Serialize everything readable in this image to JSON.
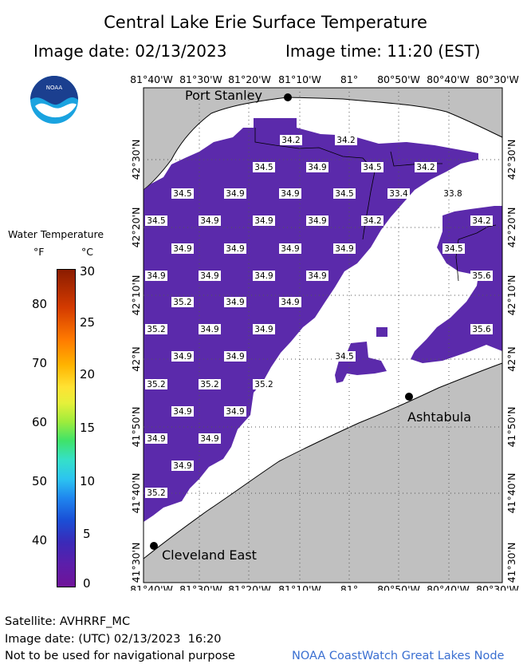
{
  "header": {
    "title": "Central Lake Erie Surface Temperature",
    "image_date": "Image date: 02/13/2023",
    "image_time": "Image time: 11:20 (EST)"
  },
  "logo_text": "NOAA",
  "map": {
    "lon_labels": [
      "81°40'W",
      "81°30'W",
      "81°20'W",
      "81°10'W",
      "81°",
      "80°50'W",
      "80°40'W",
      "80°30'W"
    ],
    "lat_labels": [
      "42°30'N",
      "42°20'N",
      "42°10'N",
      "42°N",
      "41°50'N",
      "41°40'N",
      "41°30'N"
    ],
    "places": [
      {
        "name": "Port Stanley"
      },
      {
        "name": "Ashtabula"
      },
      {
        "name": "Cleveland East"
      }
    ],
    "temperature_labels": [
      "34.2",
      "34.2",
      "34.5",
      "34.9",
      "34.5",
      "34.2",
      "34.5",
      "34.9",
      "34.9",
      "34.5",
      "33.4",
      "33.8",
      "34.5",
      "34.9",
      "34.9",
      "34.9",
      "34.2",
      "34.2",
      "34.9",
      "34.9",
      "34.9",
      "34.9",
      "34.5",
      "34.9",
      "34.9",
      "34.9",
      "34.9",
      "35.6",
      "35.2",
      "34.9",
      "34.9",
      "35.2",
      "34.9",
      "34.9",
      "35.6",
      "34.9",
      "34.9",
      "34.5",
      "35.2",
      "35.2",
      "35.2",
      "34.9",
      "34.9",
      "34.9",
      "34.9",
      "34.9",
      "35.2"
    ],
    "colors": {
      "land": "#c0c0c0",
      "water_data": "#5b2aab",
      "no_data": "#ffffff"
    }
  },
  "legend": {
    "title": "Water Temperature",
    "unit_f": "°F",
    "unit_c": "°C",
    "f_ticks": [
      "80",
      "70",
      "60",
      "50",
      "40"
    ],
    "c_ticks": [
      "30",
      "25",
      "20",
      "15",
      "10",
      "5",
      "0"
    ]
  },
  "footer": {
    "satellite": "Satellite: AVHRRF_MC",
    "utc_date": "Image date: (UTC) 02/13/2023  16:20",
    "disclaimer": "Not to be used for navigational purpose",
    "credit": "NOAA CoastWatch Great Lakes Node"
  }
}
